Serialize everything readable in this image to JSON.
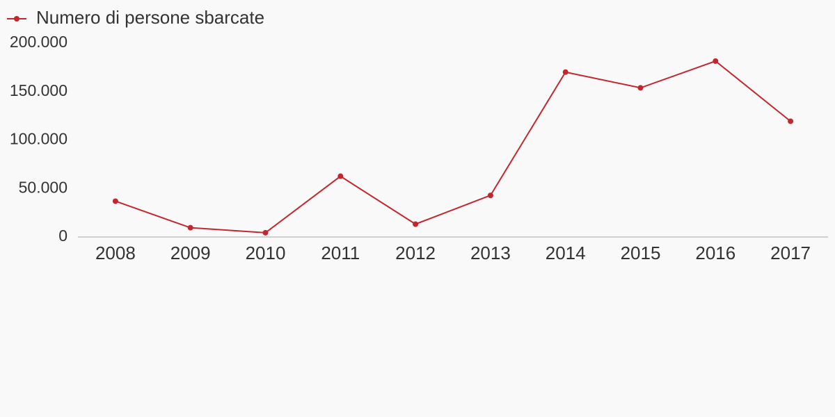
{
  "chart_data": {
    "type": "line",
    "categories": [
      "2008",
      "2009",
      "2010",
      "2011",
      "2012",
      "2013",
      "2014",
      "2015",
      "2016",
      "2017"
    ],
    "series": [
      {
        "name": "Numero di persone sbarcate",
        "color": "#c4262e",
        "values": [
          36951,
          9573,
          4406,
          62692,
          13267,
          42925,
          170100,
          153842,
          181436,
          119369
        ]
      }
    ],
    "ylim": [
      0,
      200000
    ],
    "yticks": [
      0,
      {
        "value": 50000,
        "label": "50.000"
      },
      {
        "value": 100000,
        "label": "100.000"
      },
      {
        "value": 150000,
        "label": "150.000"
      },
      {
        "value": 200000,
        "label": "200.000"
      }
    ],
    "grid": false,
    "legend": "top-left"
  }
}
